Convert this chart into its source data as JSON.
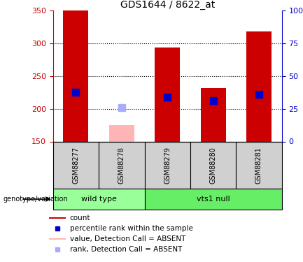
{
  "title": "GDS1644 / 8622_at",
  "samples": [
    "GSM88277",
    "GSM88278",
    "GSM88279",
    "GSM88280",
    "GSM88281"
  ],
  "bar_values": [
    350,
    175,
    293,
    232,
    318
  ],
  "bar_colors": [
    "#cc0000",
    "#ffb5b5",
    "#cc0000",
    "#cc0000",
    "#cc0000"
  ],
  "rank_values": [
    225,
    202,
    218,
    212,
    222
  ],
  "rank_colors": [
    "#0000cc",
    "#aaaaff",
    "#0000cc",
    "#0000cc",
    "#0000cc"
  ],
  "absent_flags": [
    false,
    true,
    false,
    false,
    false
  ],
  "ymin": 150,
  "ymax": 350,
  "yticks_left": [
    150,
    200,
    250,
    300,
    350
  ],
  "yticks_right_labels": [
    "0",
    "25",
    "50",
    "75",
    "100%"
  ],
  "yticks_right_vals": [
    150,
    200,
    250,
    300,
    350
  ],
  "grid_vals": [
    200,
    250,
    300
  ],
  "groups": [
    {
      "label": "wild type",
      "indices": [
        0,
        1
      ],
      "color": "#99ff99"
    },
    {
      "label": "vts1 null",
      "indices": [
        2,
        3,
        4
      ],
      "color": "#66ee66"
    }
  ],
  "legend_items": [
    {
      "label": "count",
      "color": "#cc0000",
      "is_rank": false
    },
    {
      "label": "percentile rank within the sample",
      "color": "#0000cc",
      "is_rank": true
    },
    {
      "label": "value, Detection Call = ABSENT",
      "color": "#ffb5b5",
      "is_rank": false
    },
    {
      "label": "rank, Detection Call = ABSENT",
      "color": "#aaaaff",
      "is_rank": true
    }
  ],
  "left_axis_color": "#cc0000",
  "right_axis_color": "#0000cc",
  "bar_width": 0.55,
  "rank_marker_size": 7,
  "group_label": "genotype/variation",
  "bg_color": "#ffffff",
  "sample_box_color": "#d0d0d0",
  "title_fontsize": 10,
  "tick_fontsize": 8,
  "sample_fontsize": 7,
  "group_fontsize": 8,
  "legend_fontsize": 7.5
}
